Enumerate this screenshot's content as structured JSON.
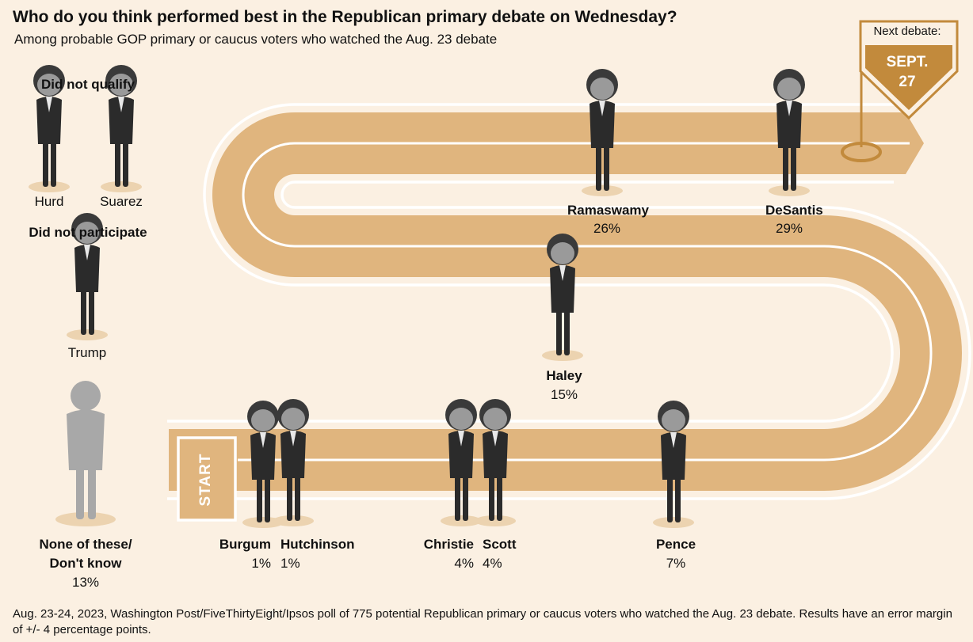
{
  "title": "Who do you think performed best in the Republican primary debate on Wednesday?",
  "subtitle": "Among probable GOP primary or caucus voters who watched the Aug. 23 debate",
  "sections": {
    "did_not_qualify": "Did not qualify",
    "did_not_participate": "Did not participate",
    "none_label_line1": "None of these/",
    "none_label_line2": "Don't know",
    "none_value": "13%"
  },
  "sidelined": [
    {
      "name": "Hurd"
    },
    {
      "name": "Suarez"
    },
    {
      "name": "Trump"
    }
  ],
  "track": {
    "start_label": "START",
    "next_debate_label": "Next debate:",
    "next_debate_month": "SEPT.",
    "next_debate_day": "27"
  },
  "colors": {
    "background": "#fbf0e2",
    "track": "#e0b57e",
    "track_line": "#ffffff",
    "flag": "#c28a3c",
    "figure": "#2b2b2b",
    "ghost": "#a8a8a8"
  },
  "chart_data": {
    "type": "bar",
    "title": "Who do you think performed best in the Republican primary debate on Wednesday?",
    "subtitle": "Among probable GOP primary or caucus voters who watched the Aug. 23 debate",
    "categories": [
      "DeSantis",
      "Ramaswamy",
      "Haley",
      "Pence",
      "Christie",
      "Scott",
      "Burgum",
      "Hutchinson",
      "None of these/Don't know"
    ],
    "values": [
      29,
      26,
      15,
      7,
      4,
      4,
      1,
      1,
      13
    ],
    "value_labels": [
      "29%",
      "26%",
      "15%",
      "7%",
      "4%",
      "4%",
      "1%",
      "1%",
      "13%"
    ],
    "unit": "%"
  },
  "footnote": "Aug. 23-24, 2023, Washington Post/FiveThirtyEight/Ipsos poll of 775 potential Republican primary or caucus voters who watched the Aug. 23 debate. Results have an error margin of +/- 4 percentage points."
}
